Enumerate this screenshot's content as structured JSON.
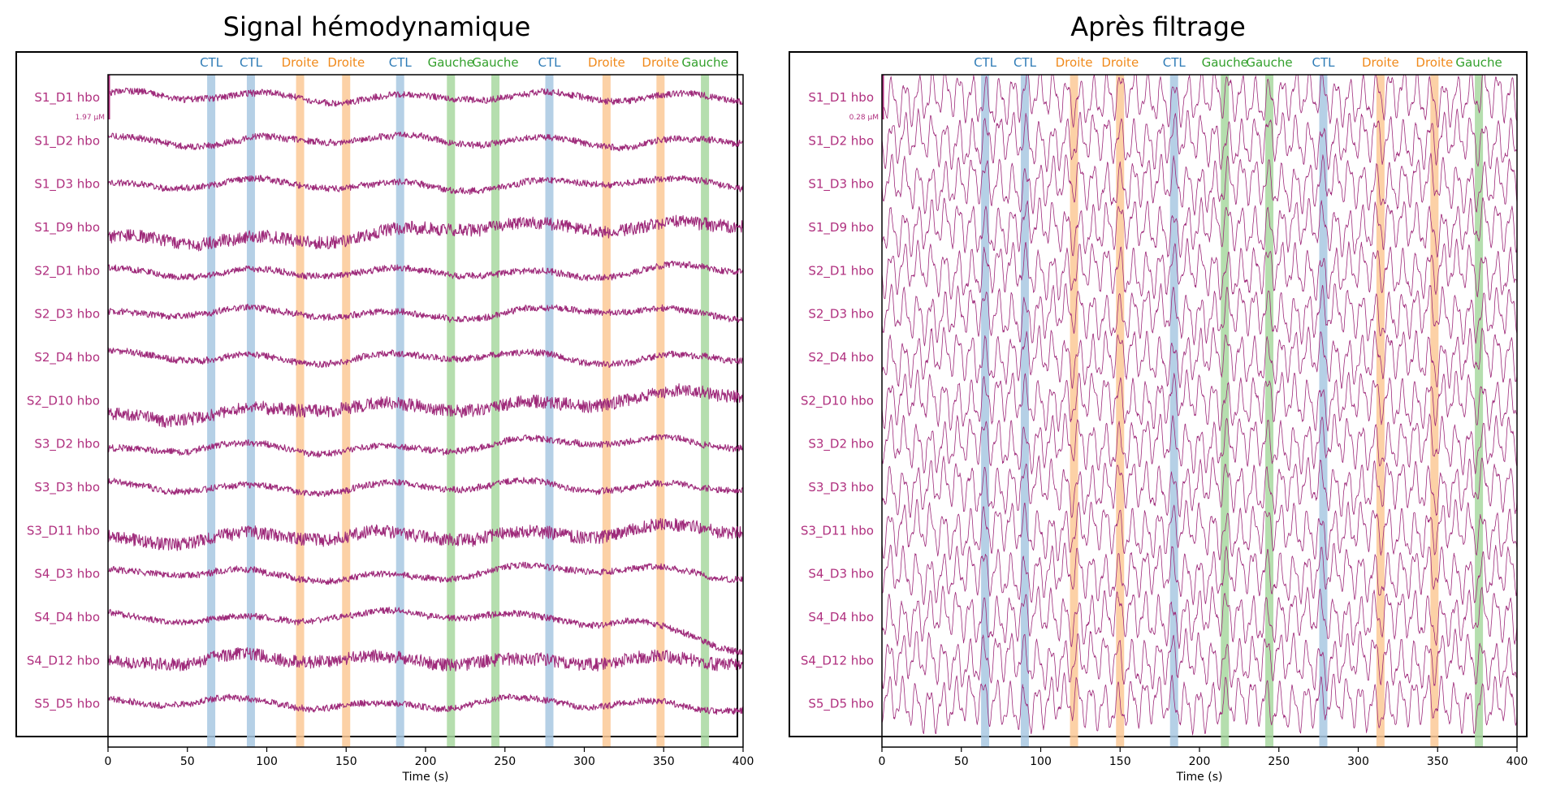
{
  "colors": {
    "trace": "#9e2a7a",
    "channel_label": "#b0307f",
    "ctl": "#2e7bb6",
    "droite": "#f08a1c",
    "gauche": "#33a02c",
    "ctl_band": "#a8c8e2",
    "droite_band": "#fcc996",
    "gauche_band": "#a8d8a0",
    "frame": "#000000"
  },
  "chart_data": [
    {
      "type": "line",
      "title": "Signal hémodynamique",
      "xlabel": "Time (s)",
      "xlim": [
        0,
        400
      ],
      "xticks": [
        0,
        50,
        100,
        150,
        200,
        250,
        300,
        350,
        400
      ],
      "scale_label": "1.97 µM",
      "channels": [
        "S1_D1 hbo",
        "S1_D2 hbo",
        "S1_D3 hbo",
        "S1_D9 hbo",
        "S2_D1 hbo",
        "S2_D3 hbo",
        "S2_D4 hbo",
        "S2_D10 hbo",
        "S3_D2 hbo",
        "S3_D3 hbo",
        "S3_D11 hbo",
        "S4_D3 hbo",
        "S4_D4 hbo",
        "S4_D12 hbo",
        "S5_D5 hbo"
      ],
      "trace_style": "raw",
      "events": [
        {
          "label": "CTL",
          "time": 65,
          "condition": "CTL"
        },
        {
          "label": "CTL",
          "time": 90,
          "condition": "CTL"
        },
        {
          "label": "Droite",
          "time": 121,
          "condition": "Droite"
        },
        {
          "label": "Droite",
          "time": 150,
          "condition": "Droite"
        },
        {
          "label": "CTL",
          "time": 184,
          "condition": "CTL"
        },
        {
          "label": "Gauche",
          "time": 216,
          "condition": "Gauche"
        },
        {
          "label": "Gauche",
          "time": 244,
          "condition": "Gauche"
        },
        {
          "label": "CTL",
          "time": 278,
          "condition": "CTL"
        },
        {
          "label": "Droite",
          "time": 314,
          "condition": "Droite"
        },
        {
          "label": "Droite",
          "time": 348,
          "condition": "Droite"
        },
        {
          "label": "Gauche",
          "time": 376,
          "condition": "Gauche"
        }
      ]
    },
    {
      "type": "line",
      "title": "Après filtrage",
      "xlabel": "Time (s)",
      "xlim": [
        0,
        400
      ],
      "xticks": [
        0,
        50,
        100,
        150,
        200,
        250,
        300,
        350,
        400
      ],
      "scale_label": "0.28 µM",
      "channels": [
        "S1_D1 hbo",
        "S1_D2 hbo",
        "S1_D3 hbo",
        "S1_D9 hbo",
        "S2_D1 hbo",
        "S2_D3 hbo",
        "S2_D4 hbo",
        "S2_D10 hbo",
        "S3_D2 hbo",
        "S3_D3 hbo",
        "S3_D11 hbo",
        "S4_D3 hbo",
        "S4_D4 hbo",
        "S4_D12 hbo",
        "S5_D5 hbo"
      ],
      "trace_style": "filtered",
      "events": [
        {
          "label": "CTL",
          "time": 65,
          "condition": "CTL"
        },
        {
          "label": "CTL",
          "time": 90,
          "condition": "CTL"
        },
        {
          "label": "Droite",
          "time": 121,
          "condition": "Droite"
        },
        {
          "label": "Droite",
          "time": 150,
          "condition": "Droite"
        },
        {
          "label": "CTL",
          "time": 184,
          "condition": "CTL"
        },
        {
          "label": "Gauche",
          "time": 216,
          "condition": "Gauche"
        },
        {
          "label": "Gauche",
          "time": 244,
          "condition": "Gauche"
        },
        {
          "label": "CTL",
          "time": 278,
          "condition": "CTL"
        },
        {
          "label": "Droite",
          "time": 314,
          "condition": "Droite"
        },
        {
          "label": "Droite",
          "time": 348,
          "condition": "Droite"
        },
        {
          "label": "Gauche",
          "time": 376,
          "condition": "Gauche"
        }
      ]
    }
  ]
}
